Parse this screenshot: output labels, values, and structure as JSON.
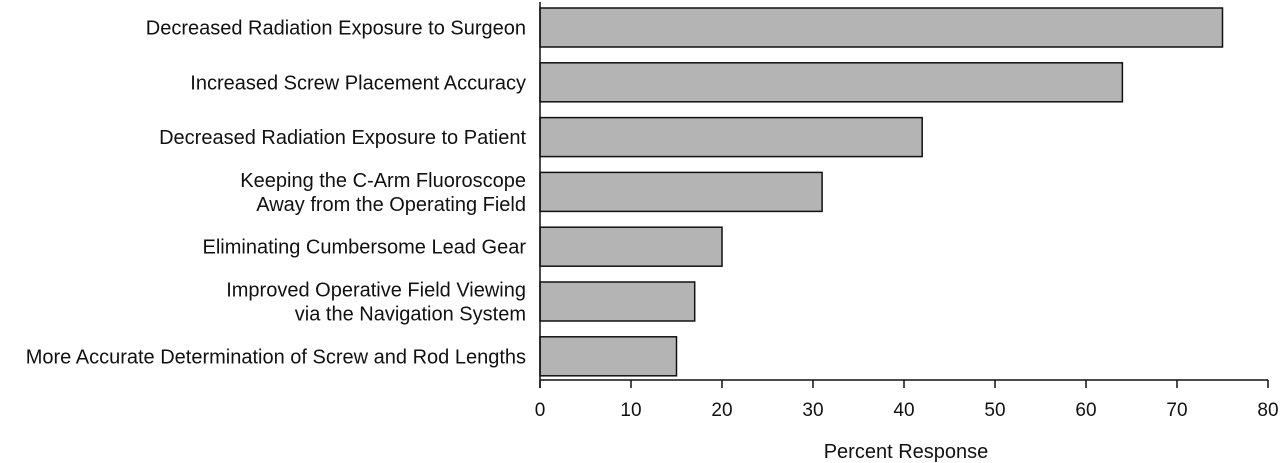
{
  "chart_data": {
    "type": "bar",
    "orientation": "horizontal",
    "categories": [
      [
        "Decreased Radiation Exposure to Surgeon"
      ],
      [
        "Increased Screw Placement Accuracy"
      ],
      [
        "Decreased Radiation Exposure to Patient"
      ],
      [
        "Keeping the C-Arm Fluoroscope",
        "Away from the Operating Field"
      ],
      [
        "Eliminating Cumbersome Lead Gear"
      ],
      [
        "Improved Operative Field Viewing",
        "via the Navigation System"
      ],
      [
        "More Accurate Determination of Screw and Rod Lengths"
      ]
    ],
    "values": [
      75,
      64,
      42,
      31,
      20,
      17,
      15
    ],
    "xlabel": "Percent Response",
    "xlim": [
      0,
      80
    ],
    "xticks": [
      "0",
      "10",
      "20",
      "30",
      "40",
      "50",
      "60",
      "70",
      "80"
    ],
    "grid": false,
    "legend": "none",
    "bar_color": "#b4b4b4"
  }
}
